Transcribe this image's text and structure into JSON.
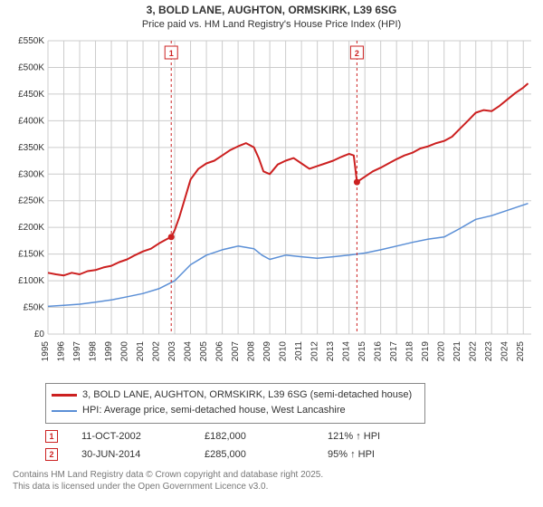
{
  "title_line1": "3, BOLD LANE, AUGHTON, ORMSKIRK, L39 6SG",
  "title_line2": "Price paid vs. HM Land Registry's House Price Index (HPI)",
  "chart": {
    "type": "line",
    "background_color": "#ffffff",
    "grid_color": "#cccccc",
    "axis_color": "#666666",
    "x_start": 1995,
    "x_end": 2025.5,
    "xtick_step": 1,
    "y_start": 0,
    "y_end": 550,
    "ytick_step": 50,
    "ylabels": [
      "£0",
      "£50K",
      "£100K",
      "£150K",
      "£200K",
      "£250K",
      "£300K",
      "£350K",
      "£400K",
      "£450K",
      "£500K",
      "£550K"
    ],
    "xlabels": [
      "1995",
      "1996",
      "1997",
      "1998",
      "1999",
      "2000",
      "2001",
      "2002",
      "2003",
      "2004",
      "2005",
      "2006",
      "2007",
      "2008",
      "2009",
      "2010",
      "2011",
      "2012",
      "2013",
      "2014",
      "2015",
      "2016",
      "2017",
      "2018",
      "2019",
      "2020",
      "2021",
      "2022",
      "2023",
      "2024",
      "2025"
    ],
    "series": [
      {
        "name": "3, BOLD LANE, AUGHTON, ORMSKIRK, L39 6SG (semi-detached house)",
        "color": "#cc2020",
        "line_width": 2,
        "points": [
          [
            1995.0,
            115
          ],
          [
            1995.5,
            112
          ],
          [
            1996.0,
            110
          ],
          [
            1996.5,
            115
          ],
          [
            1997.0,
            112
          ],
          [
            1997.5,
            118
          ],
          [
            1998.0,
            120
          ],
          [
            1998.5,
            125
          ],
          [
            1999.0,
            128
          ],
          [
            1999.5,
            135
          ],
          [
            2000.0,
            140
          ],
          [
            2000.5,
            148
          ],
          [
            2001.0,
            155
          ],
          [
            2001.5,
            160
          ],
          [
            2002.0,
            170
          ],
          [
            2002.5,
            178
          ],
          [
            2002.78,
            182
          ],
          [
            2003.0,
            195
          ],
          [
            2003.3,
            220
          ],
          [
            2003.6,
            250
          ],
          [
            2004.0,
            290
          ],
          [
            2004.5,
            310
          ],
          [
            2005.0,
            320
          ],
          [
            2005.5,
            325
          ],
          [
            2006.0,
            335
          ],
          [
            2006.5,
            345
          ],
          [
            2007.0,
            352
          ],
          [
            2007.5,
            358
          ],
          [
            2008.0,
            350
          ],
          [
            2008.3,
            330
          ],
          [
            2008.6,
            305
          ],
          [
            2009.0,
            300
          ],
          [
            2009.5,
            318
          ],
          [
            2010.0,
            325
          ],
          [
            2010.5,
            330
          ],
          [
            2011.0,
            320
          ],
          [
            2011.5,
            310
          ],
          [
            2012.0,
            315
          ],
          [
            2012.5,
            320
          ],
          [
            2013.0,
            325
          ],
          [
            2013.5,
            332
          ],
          [
            2014.0,
            338
          ],
          [
            2014.3,
            335
          ],
          [
            2014.5,
            285
          ],
          [
            2015.0,
            295
          ],
          [
            2015.5,
            305
          ],
          [
            2016.0,
            312
          ],
          [
            2016.5,
            320
          ],
          [
            2017.0,
            328
          ],
          [
            2017.5,
            335
          ],
          [
            2018.0,
            340
          ],
          [
            2018.5,
            348
          ],
          [
            2019.0,
            352
          ],
          [
            2019.5,
            358
          ],
          [
            2020.0,
            362
          ],
          [
            2020.5,
            370
          ],
          [
            2021.0,
            385
          ],
          [
            2021.5,
            400
          ],
          [
            2022.0,
            415
          ],
          [
            2022.5,
            420
          ],
          [
            2023.0,
            418
          ],
          [
            2023.5,
            428
          ],
          [
            2024.0,
            440
          ],
          [
            2024.5,
            452
          ],
          [
            2025.0,
            462
          ],
          [
            2025.3,
            470
          ]
        ]
      },
      {
        "name": "HPI: Average price, semi-detached house, West Lancashire",
        "color": "#5b8fd6",
        "line_width": 1.5,
        "points": [
          [
            1995.0,
            52
          ],
          [
            1996.0,
            54
          ],
          [
            1997.0,
            56
          ],
          [
            1998.0,
            60
          ],
          [
            1999.0,
            64
          ],
          [
            2000.0,
            70
          ],
          [
            2001.0,
            76
          ],
          [
            2002.0,
            85
          ],
          [
            2003.0,
            100
          ],
          [
            2004.0,
            130
          ],
          [
            2005.0,
            148
          ],
          [
            2006.0,
            158
          ],
          [
            2007.0,
            165
          ],
          [
            2008.0,
            160
          ],
          [
            2008.5,
            148
          ],
          [
            2009.0,
            140
          ],
          [
            2010.0,
            148
          ],
          [
            2011.0,
            145
          ],
          [
            2012.0,
            142
          ],
          [
            2013.0,
            145
          ],
          [
            2014.0,
            148
          ],
          [
            2015.0,
            152
          ],
          [
            2016.0,
            158
          ],
          [
            2017.0,
            165
          ],
          [
            2018.0,
            172
          ],
          [
            2019.0,
            178
          ],
          [
            2020.0,
            182
          ],
          [
            2021.0,
            198
          ],
          [
            2022.0,
            215
          ],
          [
            2023.0,
            222
          ],
          [
            2024.0,
            232
          ],
          [
            2025.0,
            242
          ],
          [
            2025.3,
            245
          ]
        ]
      }
    ],
    "markers": [
      {
        "label": "1",
        "x": 2002.78,
        "y": 182,
        "date": "11-OCT-2002",
        "price": "£182,000",
        "delta": "121% ↑ HPI"
      },
      {
        "label": "2",
        "x": 2014.5,
        "y": 285,
        "date": "30-JUN-2014",
        "price": "£285,000",
        "delta": "95% ↑ HPI"
      }
    ]
  },
  "legend": {
    "items": [
      {
        "color": "#cc2020",
        "label": "3, BOLD LANE, AUGHTON, ORMSKIRK, L39 6SG (semi-detached house)"
      },
      {
        "color": "#5b8fd6",
        "label": "HPI: Average price, semi-detached house, West Lancashire"
      }
    ]
  },
  "license_line1": "Contains HM Land Registry data © Crown copyright and database right 2025.",
  "license_line2": "This data is licensed under the Open Government Licence v3.0."
}
